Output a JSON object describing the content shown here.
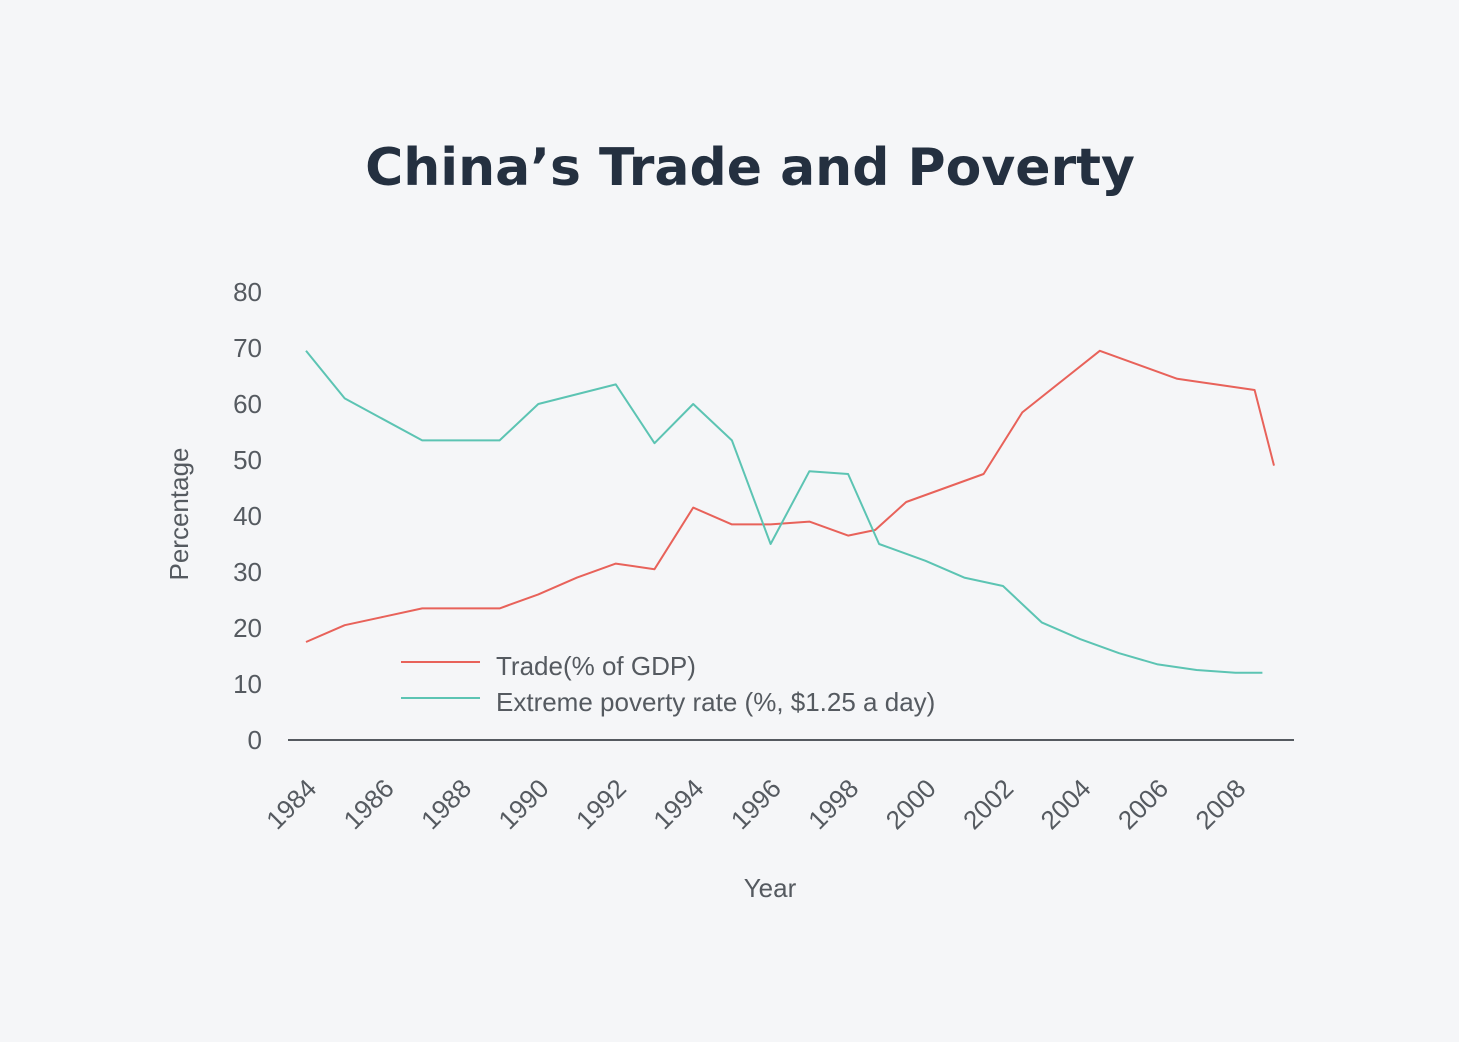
{
  "chart_data": {
    "type": "line",
    "title": "China’s Trade and Poverty",
    "xlabel": "Year",
    "ylabel": "Percentage",
    "xlim": [
      1984,
      2009
    ],
    "ylim": [
      0,
      80
    ],
    "yticks": [
      0,
      10,
      20,
      30,
      40,
      50,
      60,
      70,
      80
    ],
    "xticks": [
      1984,
      1986,
      1988,
      1990,
      1992,
      1994,
      1996,
      1998,
      2000,
      2002,
      2004,
      2006,
      2008
    ],
    "xtick_labels": [
      "1984",
      "1986",
      "1988",
      "1990",
      "1992",
      "1994",
      "1996",
      "1998",
      "2000",
      "2002",
      "2004",
      "2006",
      "2008"
    ],
    "ytick_labels": [
      "0",
      "10",
      "20",
      "30",
      "40",
      "50",
      "60",
      "70",
      "80"
    ],
    "grid": false,
    "legend_position": "lower-left",
    "series": [
      {
        "name": "Trade(% of GDP)",
        "color": "#e8625a",
        "x": [
          1984,
          1985,
          1986,
          1987,
          1988,
          1989,
          1990,
          1991,
          1992,
          1993,
          1994,
          1995,
          1996,
          1997,
          1998,
          1998.7,
          1999.5,
          2000.5,
          2001.5,
          2002.5,
          2003.5,
          2004.5,
          2005.5,
          2006.5,
          2007.5,
          2008.5,
          2009
        ],
        "values": [
          17.5,
          20.5,
          22,
          23.5,
          23.5,
          23.5,
          26,
          29,
          31.5,
          30.5,
          41.5,
          38.5,
          38.5,
          39,
          36.5,
          37.5,
          42.5,
          45,
          47.5,
          58.5,
          64,
          69.5,
          67,
          64.5,
          63.5,
          62.5,
          49
        ]
      },
      {
        "name": "Extreme poverty rate (%, $1.25 a day)",
        "color": "#5cc4b3",
        "x": [
          1984,
          1985,
          1987,
          1988,
          1989,
          1990,
          1992,
          1993,
          1994,
          1995,
          1996,
          1997,
          1998,
          1998.8,
          2000,
          2001,
          2002,
          2003,
          2004,
          2005,
          2006,
          2007,
          2008,
          2008.7
        ],
        "values": [
          69.5,
          61,
          53.5,
          53.5,
          53.5,
          60,
          63.5,
          53,
          60,
          53.5,
          35,
          48,
          47.5,
          35,
          32,
          29,
          27.5,
          21,
          18,
          15.5,
          13.5,
          12.5,
          12,
          12
        ]
      }
    ]
  }
}
